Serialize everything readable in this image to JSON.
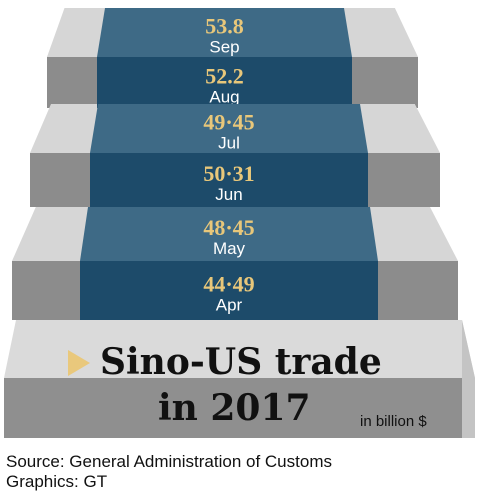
{
  "chart_data": {
    "type": "bar",
    "title": "Sino-US trade in 2017",
    "title_lines": [
      "Sino-US trade",
      "in 2017"
    ],
    "unit": "in billion $",
    "categories": [
      "Apr",
      "May",
      "Jun",
      "Jul",
      "Aug",
      "Sep"
    ],
    "values": [
      44.49,
      48.45,
      50.31,
      49.45,
      52.2,
      53.8
    ],
    "value_labels": [
      "44·49",
      "48·45",
      "50·31",
      "49·45",
      "52.2",
      "53.8"
    ]
  },
  "footer": {
    "source": "Source: General Administration of Customs",
    "credit": "Graphics: GT"
  },
  "colors": {
    "carpet_light": "#3e6a86",
    "carpet_dark": "#1d4b6a",
    "step_light": "#d6d6d6",
    "step_dark": "#8c8c8c",
    "value_text": "#e8c77a",
    "arrow": "#e9c87c"
  }
}
